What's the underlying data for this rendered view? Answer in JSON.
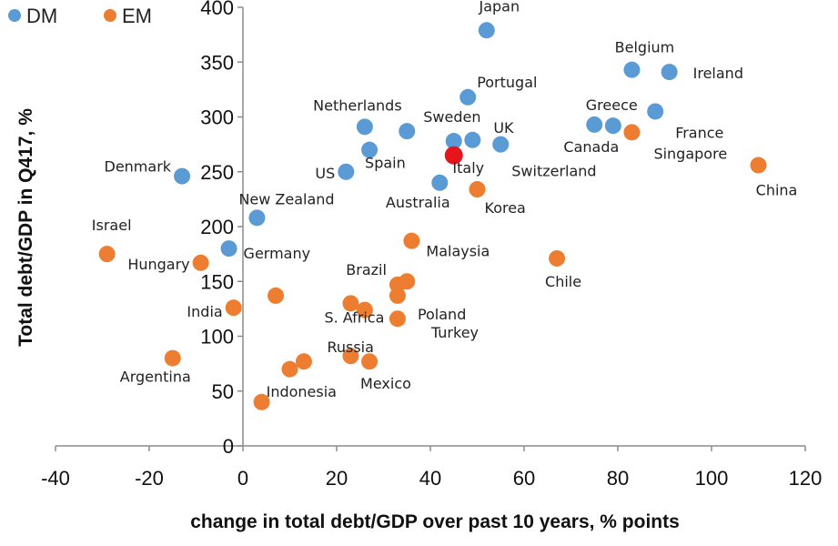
{
  "chart_data": {
    "type": "scatter",
    "xlabel": "change in total debt/GDP over past 10 years, % points",
    "ylabel": "Total debt/GDP in Q417, %",
    "xlim": [
      -40,
      120
    ],
    "ylim": [
      0,
      400
    ],
    "xticks": [
      "-40",
      "-20",
      "0",
      "20",
      "40",
      "60",
      "80",
      "100",
      "120"
    ],
    "yticks": [
      "0",
      "50",
      "100",
      "150",
      "200",
      "250",
      "300",
      "350",
      "400"
    ],
    "grid": false,
    "legend": {
      "position": "top-left",
      "entries": [
        {
          "name": "DM",
          "color": "#5b9bd5"
        },
        {
          "name": "EM",
          "color": "#ed7d31"
        }
      ]
    },
    "highlight_color": "#e8141b",
    "series": [
      {
        "name": "DM",
        "color": "#5b9bd5",
        "points": [
          {
            "label": "Japan",
            "x": 52,
            "y": 379
          },
          {
            "label": "Belgium",
            "x": 83,
            "y": 343
          },
          {
            "label": "Ireland",
            "x": 91,
            "y": 341
          },
          {
            "label": "Portugal",
            "x": 48,
            "y": 318
          },
          {
            "label": "France",
            "x": 88,
            "y": 305
          },
          {
            "label": "Netherlands",
            "x": 26,
            "y": 291
          },
          {
            "label": "Sweden",
            "x": 35,
            "y": 287
          },
          {
            "label": "Greece",
            "x": 75,
            "y": 293
          },
          {
            "label": "Canada",
            "x": 79,
            "y": 292
          },
          {
            "label": "UK",
            "x": 49,
            "y": 279
          },
          {
            "label": "Switzerland",
            "x": 55,
            "y": 275
          },
          {
            "label": "Italy",
            "x": 45,
            "y": 278
          },
          {
            "label": "Spain",
            "x": 27,
            "y": 270
          },
          {
            "label": "US",
            "x": 22,
            "y": 250
          },
          {
            "label": "Denmark",
            "x": -13,
            "y": 246
          },
          {
            "label": "Australia",
            "x": 42,
            "y": 240
          },
          {
            "label": "New Zealand",
            "x": 3,
            "y": 208
          },
          {
            "label": "Germany",
            "x": -3,
            "y": 180
          }
        ]
      },
      {
        "name": "EM",
        "color": "#ed7d31",
        "points": [
          {
            "label": "Singapore",
            "x": 83,
            "y": 286
          },
          {
            "label": "China",
            "x": 110,
            "y": 256
          },
          {
            "label": "Korea",
            "x": 50,
            "y": 234
          },
          {
            "label": "Malaysia",
            "x": 36,
            "y": 187
          },
          {
            "label": "Chile",
            "x": 67,
            "y": 171
          },
          {
            "label": "Israel",
            "x": -29,
            "y": 175
          },
          {
            "label": "Hungary",
            "x": -9,
            "y": 167
          },
          {
            "label": "Brazil",
            "x": 33,
            "y": 147
          },
          {
            "label": "",
            "x": 35,
            "y": 150
          },
          {
            "label": "Poland",
            "x": 33,
            "y": 137
          },
          {
            "label": "",
            "x": 7,
            "y": 137
          },
          {
            "label": "S. Africa",
            "x": 23,
            "y": 130
          },
          {
            "label": "",
            "x": 26,
            "y": 124
          },
          {
            "label": "India",
            "x": -2,
            "y": 126
          },
          {
            "label": "Turkey",
            "x": 33,
            "y": 116
          },
          {
            "label": "Argentina",
            "x": -15,
            "y": 80
          },
          {
            "label": "Russia",
            "x": 23,
            "y": 82
          },
          {
            "label": "Mexico",
            "x": 27,
            "y": 77
          },
          {
            "label": "",
            "x": 13,
            "y": 77
          },
          {
            "label": "",
            "x": 10,
            "y": 70
          },
          {
            "label": "Indonesia",
            "x": 4,
            "y": 40
          }
        ]
      }
    ],
    "highlight": {
      "x": 45,
      "y": 265
    }
  }
}
